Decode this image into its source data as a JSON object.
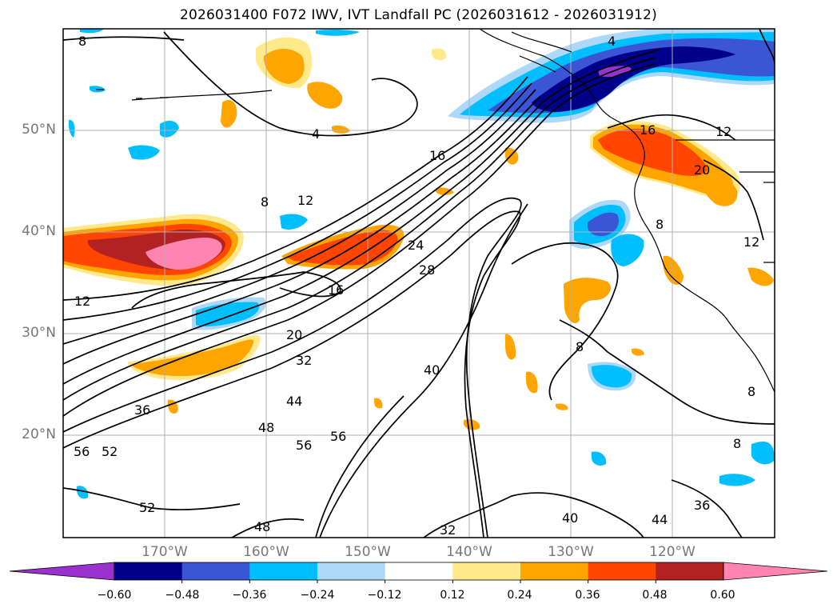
{
  "title": "2026031400 F072 IWV, IVT Landfall PC (2026031612 - 2026031912)",
  "colors": {
    "land": "#ffffff",
    "ocean": "#ffffff",
    "grid": "#b0b0b0",
    "contour": "#000000",
    "coast": "#000000"
  },
  "map": {
    "lat_labels": [
      "50°N",
      "40°N",
      "30°N",
      "20°N"
    ],
    "lon_labels": [
      "170°W",
      "160°W",
      "150°W",
      "140°W",
      "130°W",
      "120°W"
    ],
    "contour_labels": [
      "8",
      "4",
      "4",
      "16",
      "12",
      "8",
      "12",
      "16",
      "24",
      "28",
      "16",
      "20",
      "32",
      "12",
      "40",
      "36",
      "44",
      "48",
      "56",
      "56",
      "56",
      "52",
      "52",
      "48",
      "32",
      "40",
      "44",
      "36",
      "8",
      "8",
      "12",
      "8",
      "20",
      "8"
    ]
  },
  "colorbar": {
    "colors": [
      "#9932cc",
      "#00008b",
      "#3a55d6",
      "#00bfff",
      "#add8f7",
      "#ffffff",
      "#ffe98a",
      "#ffa500",
      "#ff4500",
      "#b22222",
      "#ff85b0"
    ],
    "tick_labels": [
      "−0.60",
      "−0.48",
      "−0.36",
      "−0.24",
      "−0.12",
      "0.12",
      "0.24",
      "0.36",
      "0.48",
      "0.60"
    ]
  }
}
